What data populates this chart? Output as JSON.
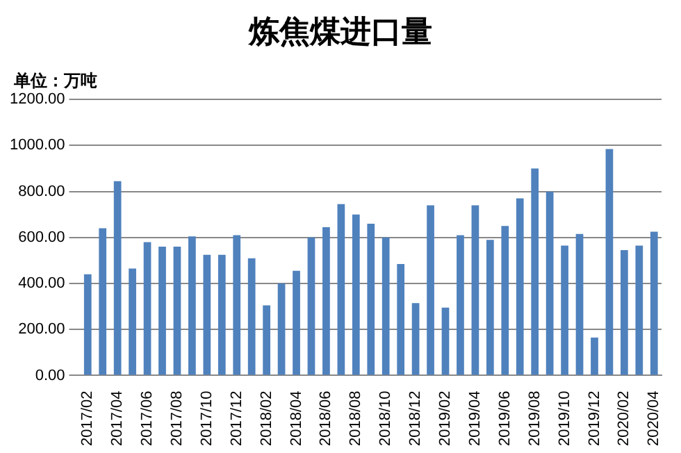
{
  "chart_data": {
    "type": "bar",
    "title": "炼焦煤进口量",
    "ylabel": "单位：万吨",
    "categories": [
      "2017/02",
      null,
      "2017/04",
      null,
      "2017/06",
      null,
      "2017/08",
      null,
      "2017/10",
      null,
      "2017/12",
      null,
      "2018/02",
      null,
      "2018/04",
      null,
      "2018/06",
      null,
      "2018/08",
      null,
      "2018/10",
      null,
      "2018/12",
      null,
      "2019/02",
      null,
      "2019/04",
      null,
      "2019/06",
      null,
      "2019/08",
      null,
      "2019/10",
      null,
      "2019/12",
      null,
      "2020/02",
      null,
      "2020/04"
    ],
    "values": [
      440,
      640,
      845,
      465,
      580,
      560,
      560,
      605,
      525,
      525,
      610,
      510,
      305,
      400,
      455,
      600,
      645,
      745,
      700,
      660,
      600,
      485,
      315,
      740,
      295,
      610,
      740,
      590,
      650,
      770,
      900,
      800,
      565,
      615,
      165,
      985,
      545,
      565,
      625
    ],
    "color": "#4f81bd",
    "ylim": [
      0,
      1200
    ],
    "yticks": [
      {
        "value": 0,
        "label": "0.00"
      },
      {
        "value": 200,
        "label": "200.00"
      },
      {
        "value": 400,
        "label": "400.00"
      },
      {
        "value": 600,
        "label": "600.00"
      },
      {
        "value": 800,
        "label": "800.00"
      },
      {
        "value": 1000,
        "label": "1000.00"
      },
      {
        "value": 1200,
        "label": "1200.00"
      }
    ],
    "grid": "y",
    "legend": false
  }
}
